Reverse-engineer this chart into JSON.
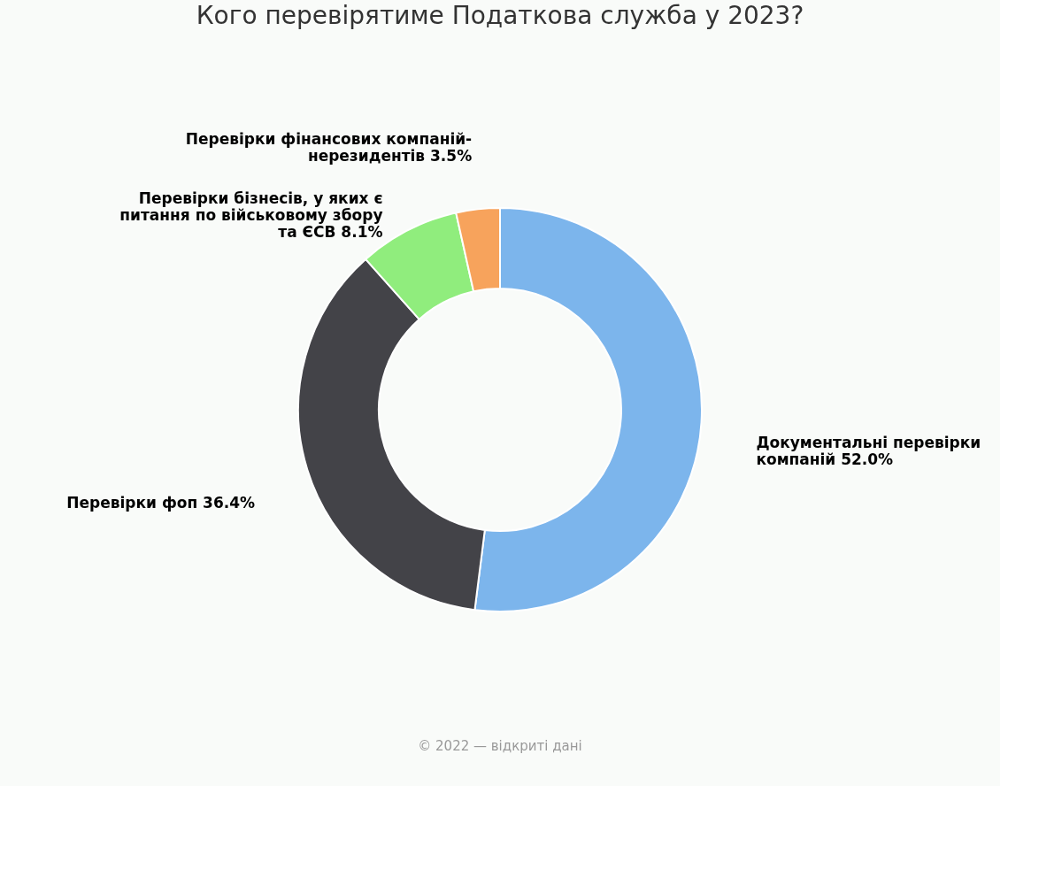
{
  "chart_data": {
    "type": "donut",
    "title": "Кого перевірятиме Податкова служба у 2023?",
    "categories": [
      "Документальні перевірки компаній",
      "Перевірки фоп",
      "Перевірки бізнесів, у яких є питання по військовому збору та ЄСВ",
      "Перевірки фінансових компаній-нерезидентів"
    ],
    "values": [
      52.0,
      36.4,
      8.1,
      3.5
    ],
    "value_labels": [
      "52.0%",
      "36.4%",
      "8.1%",
      "3.5%"
    ],
    "colors": [
      "#7cb5ec",
      "#434348",
      "#90ed7d",
      "#f7a35c"
    ],
    "annotations": [
      "© 2022 — відкриті дані"
    ]
  }
}
